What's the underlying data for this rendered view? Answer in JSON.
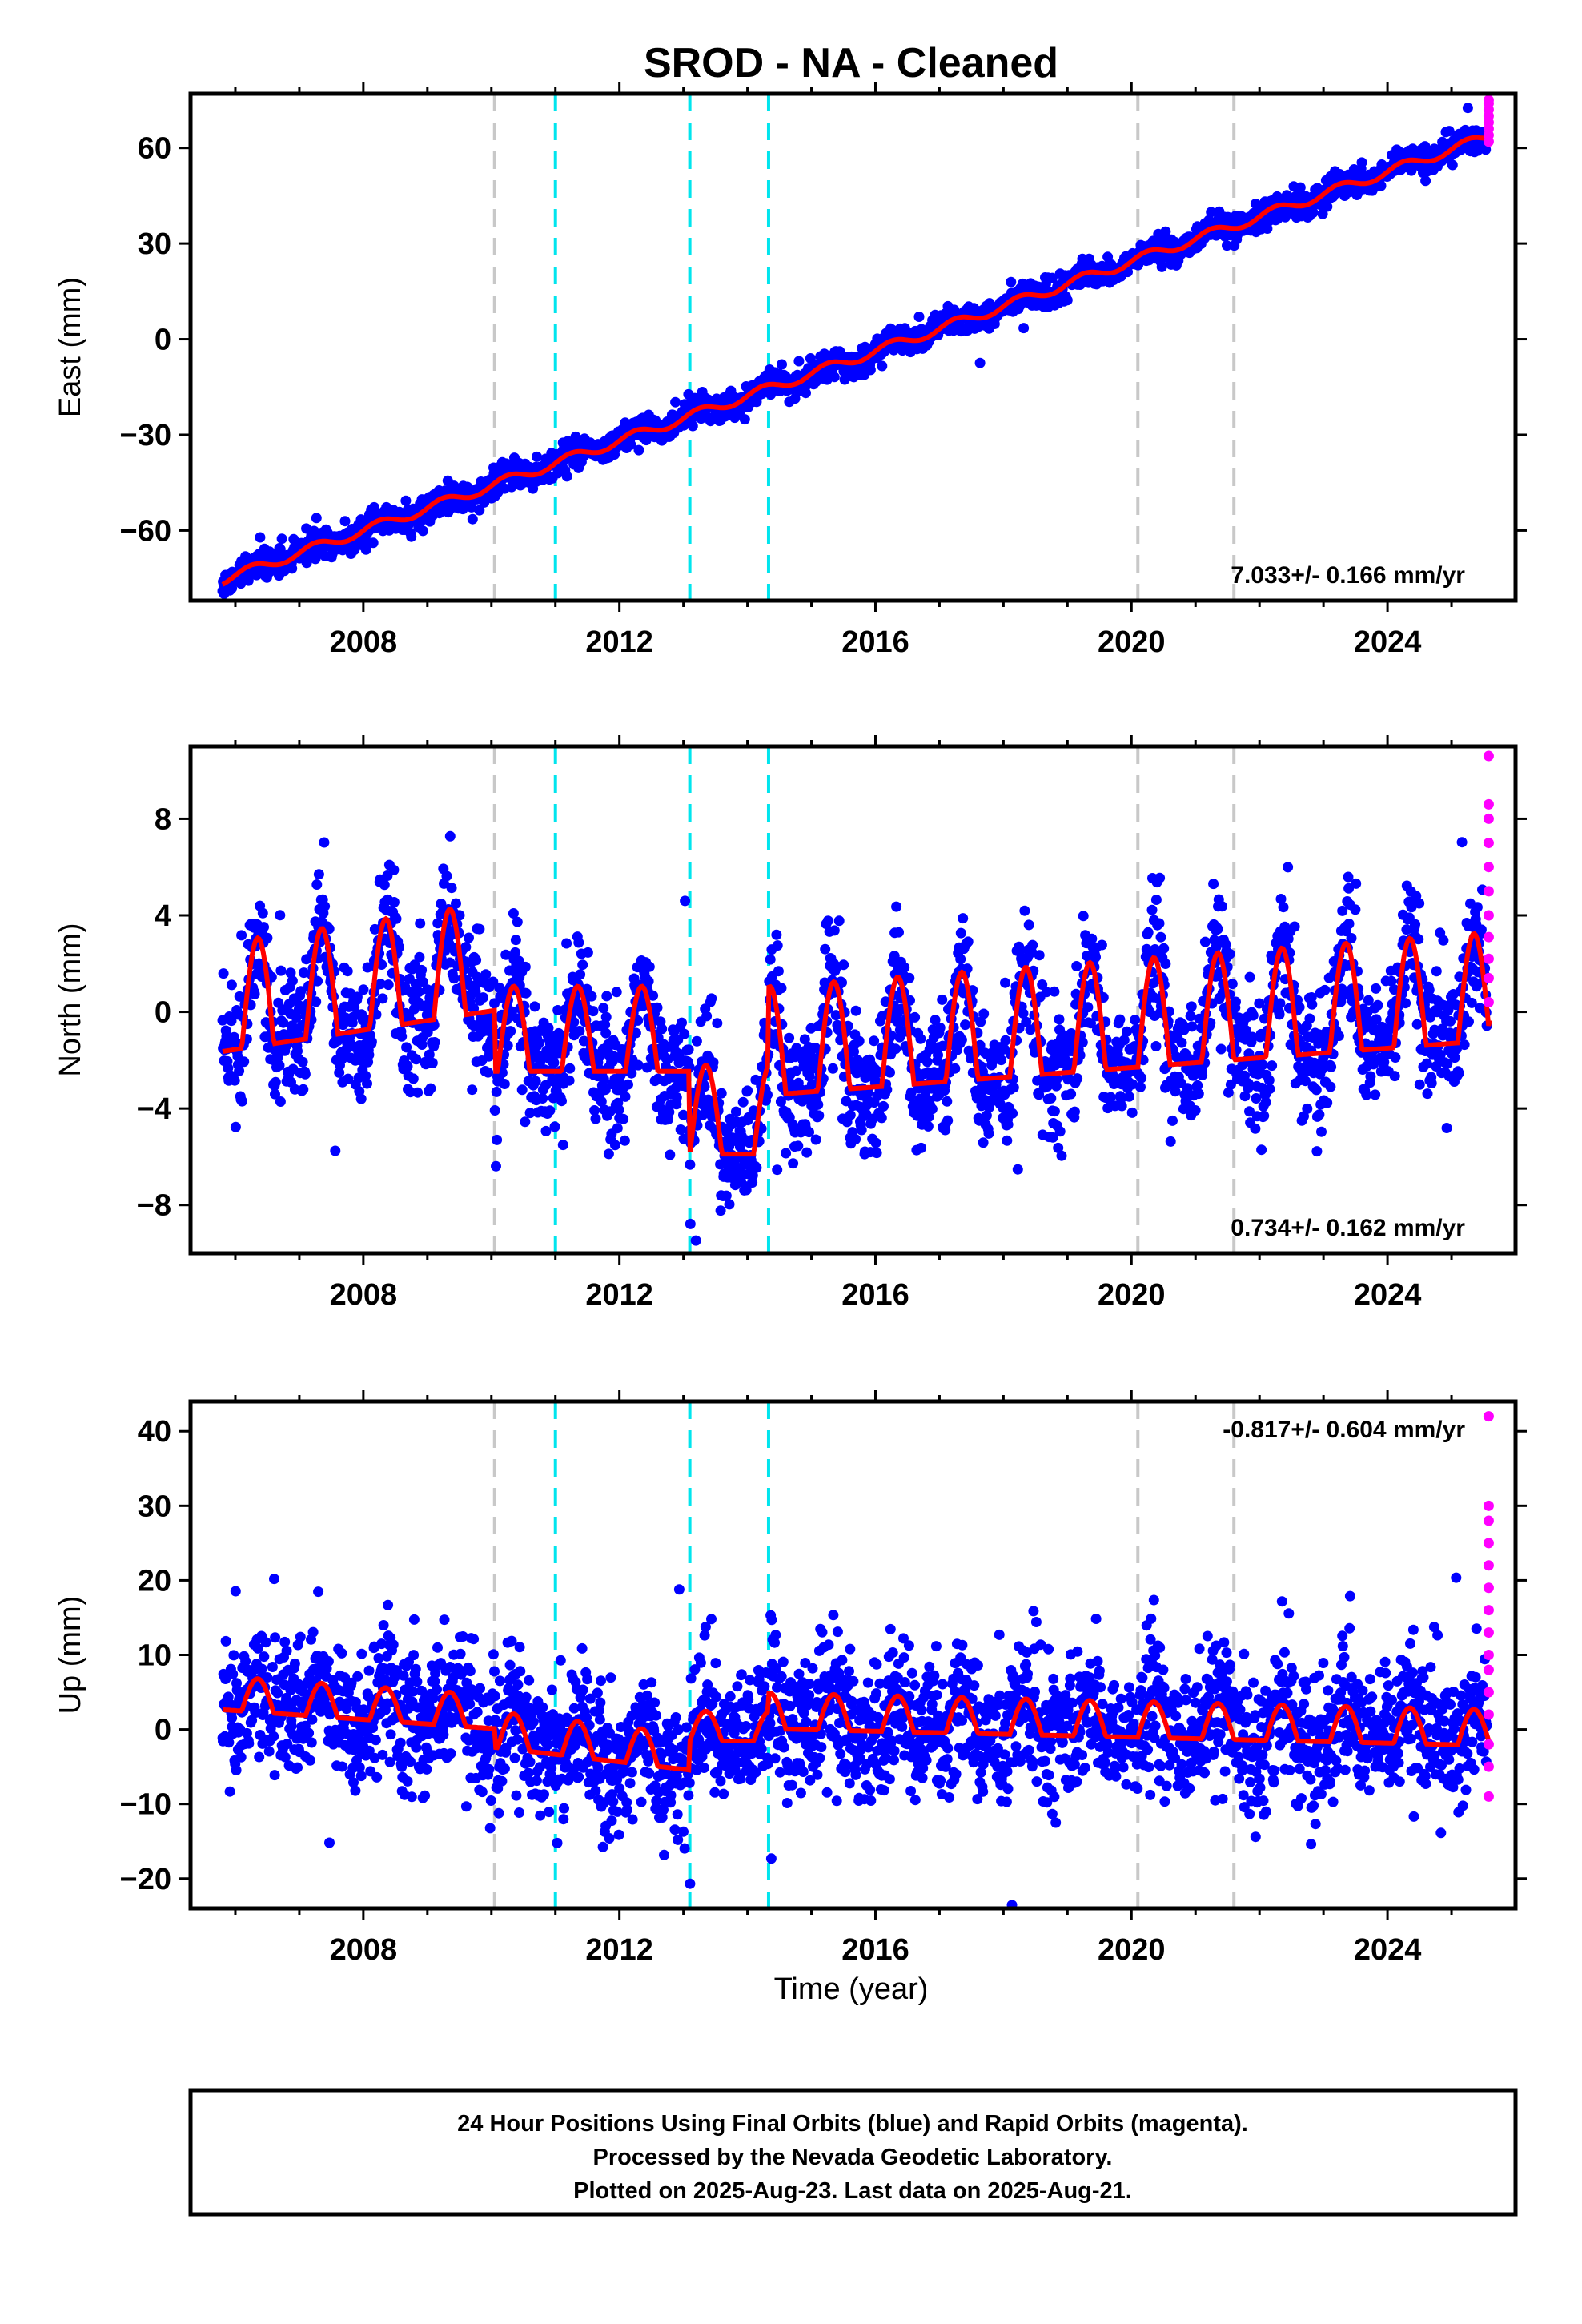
{
  "title": "SROD  - NA - Cleaned",
  "xlabel": "Time (year)",
  "x_ticks": [
    "2008",
    "2012",
    "2016",
    "2020",
    "2024"
  ],
  "footer": {
    "line1": "24 Hour Positions Using Final Orbits (blue) and Rapid Orbits (magenta).",
    "line2": "Processed by the Nevada Geodetic Laboratory.",
    "line3": "Plotted on 2025-Aug-23. Last data on 2025-Aug-21."
  },
  "colors": {
    "final_orbits": "#0000ff",
    "rapid_orbits": "#ff00ff",
    "model_fit": "#ff0000",
    "equipment_change": "#c8c8c8",
    "earthquake": "#00e5ee"
  },
  "chart_data": [
    {
      "type": "scatter",
      "panel": "east",
      "ylabel": "East (mm)",
      "rate_label": "7.033+/- 0.166 mm/yr",
      "xlim": [
        2005.3,
        2026.0
      ],
      "ylim": [
        -82,
        77
      ],
      "y_ticks": [
        "60",
        "30",
        "0",
        "−30",
        "−60"
      ],
      "y_tick_values": [
        60,
        30,
        0,
        -30,
        -60
      ],
      "vlines_gray": [
        2010.05,
        2020.1,
        2021.6
      ],
      "vlines_cyan": [
        2011.0,
        2013.1,
        2014.33
      ],
      "fit": {
        "start_year": 2005.8,
        "end_year": 2025.6,
        "y_start": -75.5,
        "y_end": 68.5,
        "rate": 7.033,
        "seasonal_amplitude": 1.5,
        "scatter": 2.0
      },
      "rapid_points": {
        "x": 2025.58,
        "y": [
          62,
          64,
          66,
          68,
          70,
          72,
          74,
          75
        ]
      }
    },
    {
      "type": "scatter",
      "panel": "north",
      "ylabel": "North (mm)",
      "rate_label": "0.734+/- 0.162 mm/yr",
      "xlim": [
        2005.3,
        2026.0
      ],
      "ylim": [
        -10,
        11
      ],
      "y_ticks": [
        "8",
        "4",
        "0",
        "−4",
        "−8"
      ],
      "y_tick_values": [
        8,
        4,
        0,
        -4,
        -8
      ],
      "vlines_gray": [
        2010.05,
        2020.1,
        2021.6
      ],
      "vlines_cyan": [
        2011.0,
        2013.1,
        2014.33
      ],
      "fit_segments": [
        {
          "from": 2005.8,
          "to": 2010.05,
          "base": -0.8,
          "amplitude": 2.8,
          "trend": 0.4
        },
        {
          "from": 2010.05,
          "to": 2013.1,
          "base": -1.8,
          "amplitude": 2.2,
          "trend": 0.0
        },
        {
          "from": 2013.1,
          "to": 2014.33,
          "base": -5.2,
          "amplitude": 2.3,
          "trend": 0.0
        },
        {
          "from": 2014.33,
          "to": 2025.6,
          "base": -2.6,
          "amplitude": 2.8,
          "trend": 0.2
        }
      ],
      "rapid_points": {
        "x": 2025.58,
        "y": [
          0.4,
          1.4,
          2.2,
          3.1,
          4.0,
          5.0,
          6.0,
          7.0,
          8.0,
          8.6,
          10.6
        ]
      }
    },
    {
      "type": "scatter",
      "panel": "up",
      "ylabel": "Up (mm)",
      "rate_label": "-0.817+/- 0.604 mm/yr",
      "xlim": [
        2005.3,
        2026.0
      ],
      "ylim": [
        -24,
        44
      ],
      "y_ticks": [
        "40",
        "30",
        "20",
        "10",
        "0",
        "−10",
        "−20"
      ],
      "y_tick_values": [
        40,
        30,
        20,
        10,
        0,
        -10,
        -20
      ],
      "vlines_gray": [
        2010.05,
        2020.1,
        2021.6
      ],
      "vlines_cyan": [
        2011.0,
        2013.1,
        2014.33
      ],
      "fit_segments": [
        {
          "from": 2005.8,
          "to": 2010.05,
          "base": 3.5,
          "amplitude": 2.8,
          "trend": -0.6
        },
        {
          "from": 2010.05,
          "to": 2013.1,
          "base": -1.5,
          "amplitude": 3.0,
          "trend": -1.0
        },
        {
          "from": 2013.1,
          "to": 2014.33,
          "base": -0.8,
          "amplitude": 2.5,
          "trend": 0.0
        },
        {
          "from": 2014.33,
          "to": 2025.6,
          "base": 1.0,
          "amplitude": 3.0,
          "trend": -0.2
        }
      ],
      "rapid_points": {
        "x": 2025.58,
        "y": [
          -9,
          -5,
          -2,
          2,
          5,
          8,
          10,
          13,
          16,
          19,
          22,
          25,
          28,
          30,
          42
        ]
      }
    }
  ]
}
